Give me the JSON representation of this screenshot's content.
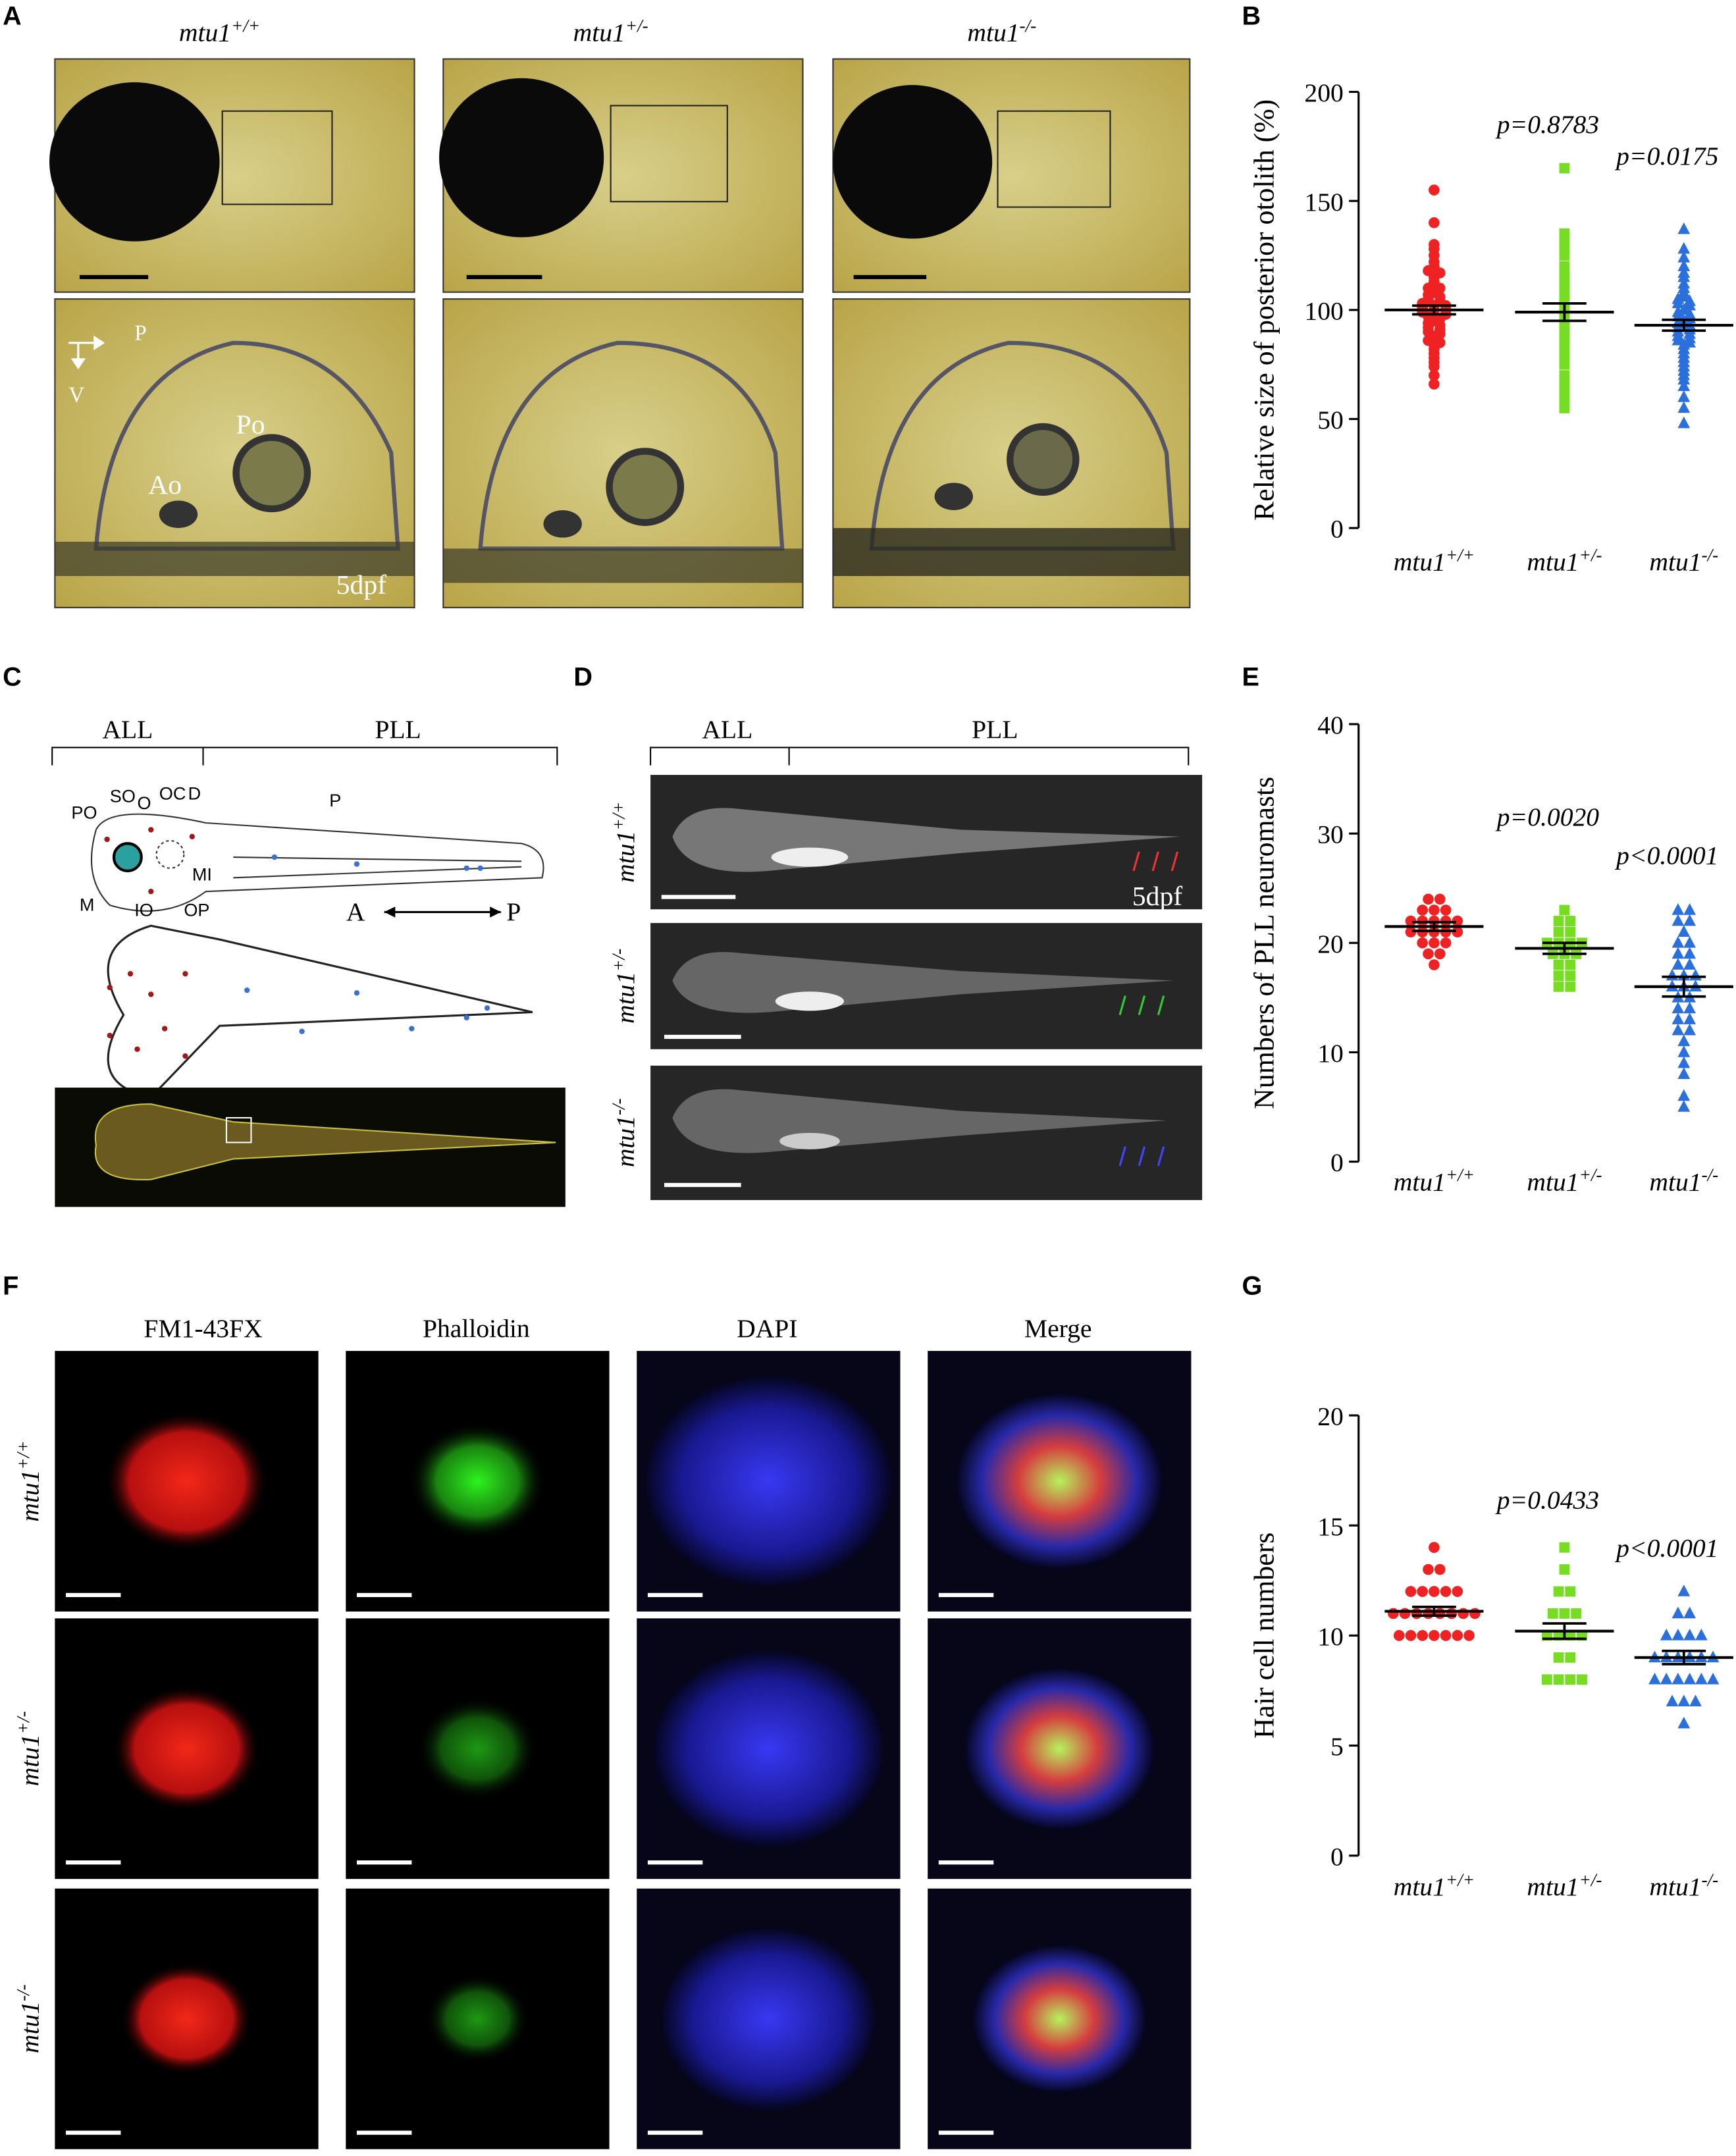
{
  "panel_letters": [
    "A",
    "B",
    "C",
    "D",
    "E",
    "F",
    "G"
  ],
  "panel_a": {
    "genotypes": [
      "mtu1+/+",
      "mtu1+/-",
      "mtu1-/-"
    ],
    "axes": [
      "P",
      "V"
    ],
    "labels": [
      "Po",
      "Ao"
    ],
    "stage": "5dpf"
  },
  "panel_c": {
    "brackets": [
      "ALL",
      "PLL"
    ],
    "labels": [
      "PO",
      "SO",
      "O",
      "OC",
      "D",
      "P",
      "M",
      "IO",
      "OP",
      "MI"
    ],
    "axis": [
      "A",
      "P"
    ]
  },
  "panel_d": {
    "brackets": [
      "ALL",
      "PLL"
    ],
    "genotypes": [
      "mtu1+/+",
      "mtu1+/-",
      "mtu1-/-"
    ],
    "stage": "5dpf"
  },
  "panel_f": {
    "columns": [
      "FM1-43FX",
      "Phalloidin",
      "DAPI",
      "Merge"
    ],
    "genotypes": [
      "mtu1+/+",
      "mtu1+/-",
      "mtu1-/-"
    ]
  },
  "chart_data": [
    {
      "type": "strip",
      "ylabel": "Relative size of posterior otolith (%)",
      "categories": [
        "mtu1+/+",
        "mtu1+/-",
        "mtu1-/-"
      ],
      "annotations": [
        null,
        "p=0.8783",
        "p=0.0175"
      ],
      "ylim": [
        0,
        200
      ],
      "yticks": [
        0,
        50,
        100,
        150,
        200
      ],
      "series": [
        {
          "color": "#ee2222",
          "marker": "circle",
          "mean": 100,
          "sem": 2,
          "values": [
            155,
            140,
            130,
            128,
            125,
            122,
            120,
            118,
            117,
            115,
            113,
            112,
            110,
            110,
            108,
            107,
            106,
            105,
            104,
            103,
            102,
            102,
            101,
            100,
            100,
            99,
            98,
            98,
            97,
            96,
            95,
            94,
            93,
            92,
            91,
            90,
            89,
            88,
            86,
            85,
            84,
            82,
            80,
            78,
            76,
            74,
            70,
            66
          ]
        },
        {
          "color": "#77dd22",
          "marker": "square",
          "mean": 99,
          "sem": 4,
          "values": [
            165,
            135,
            132,
            128,
            125,
            120,
            117,
            115,
            112,
            110,
            108,
            106,
            104,
            102,
            100,
            98,
            96,
            95,
            93,
            90,
            88,
            86,
            84,
            80,
            78,
            75,
            70,
            66,
            62,
            58,
            55
          ]
        },
        {
          "color": "#2a6fdb",
          "marker": "triangle",
          "mean": 93,
          "sem": 2.5,
          "values": [
            137,
            128,
            124,
            120,
            117,
            115,
            112,
            110,
            108,
            106,
            105,
            104,
            103,
            102,
            100,
            99,
            98,
            97,
            96,
            95,
            94,
            93,
            92,
            91,
            90,
            89,
            88,
            87,
            86,
            85,
            84,
            82,
            80,
            78,
            76,
            74,
            72,
            70,
            68,
            65,
            60,
            55,
            48
          ]
        }
      ]
    },
    {
      "type": "strip",
      "ylabel": "Numbers of  PLL neuromasts",
      "categories": [
        "mtu1+/+",
        "mtu1+/-",
        "mtu1-/-"
      ],
      "annotations": [
        null,
        "p=0.0020",
        "p<0.0001"
      ],
      "ylim": [
        0,
        40
      ],
      "yticks": [
        0,
        10,
        20,
        30,
        40
      ],
      "series": [
        {
          "color": "#ee2222",
          "marker": "circle",
          "mean": 21.5,
          "sem": 0.4,
          "values": [
            24,
            24,
            23,
            23,
            23,
            22,
            22,
            22,
            22,
            22,
            21,
            21,
            21,
            21,
            21,
            20,
            20,
            20,
            19,
            19,
            18
          ]
        },
        {
          "color": "#77dd22",
          "marker": "square",
          "mean": 19.5,
          "sem": 0.5,
          "values": [
            23,
            22,
            22,
            21,
            21,
            20,
            20,
            20,
            20,
            19,
            19,
            19,
            18,
            18,
            17,
            17,
            16,
            16
          ]
        },
        {
          "color": "#2a6fdb",
          "marker": "triangle",
          "mean": 16,
          "sem": 0.9,
          "values": [
            23,
            23,
            22,
            22,
            21,
            20,
            20,
            19,
            19,
            18,
            18,
            17,
            17,
            17,
            16,
            16,
            16,
            15,
            15,
            14,
            14,
            13,
            13,
            12,
            12,
            11,
            10,
            9,
            8,
            6,
            5
          ]
        }
      ]
    },
    {
      "type": "strip",
      "ylabel": "Hair cell numbers",
      "categories": [
        "mtu1+/+",
        "mtu1+/-",
        "mtu1-/-"
      ],
      "annotations": [
        null,
        "p=0.0433",
        "p<0.0001"
      ],
      "ylim": [
        0,
        20
      ],
      "yticks": [
        0,
        5,
        10,
        15,
        20
      ],
      "series": [
        {
          "color": "#ee2222",
          "marker": "circle",
          "mean": 11.1,
          "sem": 0.2,
          "values": [
            14,
            13,
            13,
            12,
            12,
            12,
            12,
            12,
            11,
            11,
            11,
            11,
            11,
            11,
            11,
            11,
            10,
            10,
            10,
            10,
            10,
            10,
            10
          ]
        },
        {
          "color": "#77dd22",
          "marker": "square",
          "mean": 10.2,
          "sem": 0.35,
          "values": [
            14,
            13,
            12,
            12,
            11,
            11,
            11,
            10,
            10,
            10,
            10,
            9,
            9,
            8,
            8,
            8,
            8
          ]
        },
        {
          "color": "#2a6fdb",
          "marker": "triangle",
          "mean": 9,
          "sem": 0.3,
          "values": [
            12,
            11,
            11,
            10,
            10,
            10,
            10,
            9,
            9,
            9,
            9,
            9,
            9,
            8,
            8,
            8,
            8,
            8,
            8,
            7,
            7,
            7,
            6
          ]
        }
      ]
    }
  ]
}
